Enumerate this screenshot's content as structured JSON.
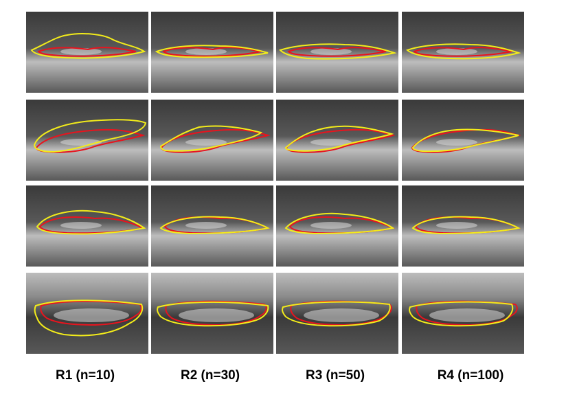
{
  "columns": [
    {
      "label": "R1 (n=10)"
    },
    {
      "label": "R2 (n=30)"
    },
    {
      "label": "R3 (n=50)"
    },
    {
      "label": "R4 (n=100)"
    }
  ],
  "rows": 4,
  "contour_colors": {
    "reference": "#e8141e",
    "predicted": "#f3ec1a"
  },
  "tile_palette": [
    "#3a3a3a",
    "#585858",
    "#8a8a8a",
    "#bdbdbd"
  ]
}
